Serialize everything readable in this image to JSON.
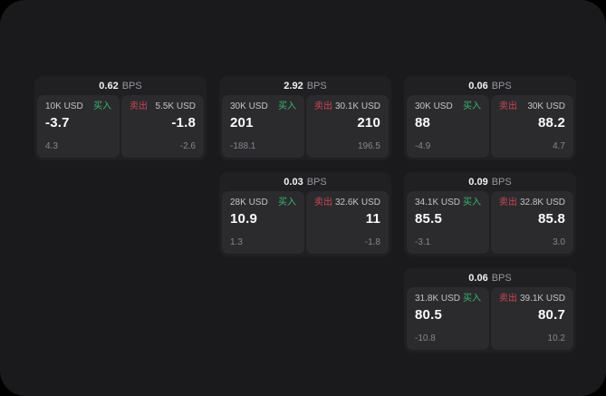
{
  "labels": {
    "bps_unit": "BPS",
    "buy": "买入",
    "sell": "卖出"
  },
  "colors": {
    "page_bg": "#000000",
    "frame_bg": "#1a1a1c",
    "card_bg": "#202023",
    "tile_bg": "#2b2b2e",
    "buy_green": "#3db56f",
    "sell_red": "#cc4554",
    "primary_text": "#fbfbfc",
    "muted_text": "#86868c"
  },
  "cards": [
    {
      "bps": "0.62",
      "buy": {
        "amount": "10K USD",
        "price": "-3.7",
        "delta": "4.3"
      },
      "sell": {
        "amount": "5.5K USD",
        "price": "-1.8",
        "delta": "-2.6"
      }
    },
    {
      "bps": "2.92",
      "buy": {
        "amount": "30K USD",
        "price": "201",
        "delta": "-188.1"
      },
      "sell": {
        "amount": "30.1K USD",
        "price": "210",
        "delta": "196.5"
      }
    },
    {
      "bps": "0.06",
      "buy": {
        "amount": "30K USD",
        "price": "88",
        "delta": "-4.9"
      },
      "sell": {
        "amount": "30K USD",
        "price": "88.2",
        "delta": "4.7"
      }
    },
    {
      "bps": "0.03",
      "buy": {
        "amount": "28K USD",
        "price": "10.9",
        "delta": "1.3"
      },
      "sell": {
        "amount": "32.6K USD",
        "price": "11",
        "delta": "-1.8"
      }
    },
    {
      "bps": "0.09",
      "buy": {
        "amount": "34.1K USD",
        "price": "85.5",
        "delta": "-3.1"
      },
      "sell": {
        "amount": "32.8K USD",
        "price": "85.8",
        "delta": "3.0"
      }
    },
    {
      "bps": "0.06",
      "buy": {
        "amount": "31.8K USD",
        "price": "80.5",
        "delta": "-10.8"
      },
      "sell": {
        "amount": "39.1K USD",
        "price": "80.7",
        "delta": "10.2"
      }
    }
  ]
}
